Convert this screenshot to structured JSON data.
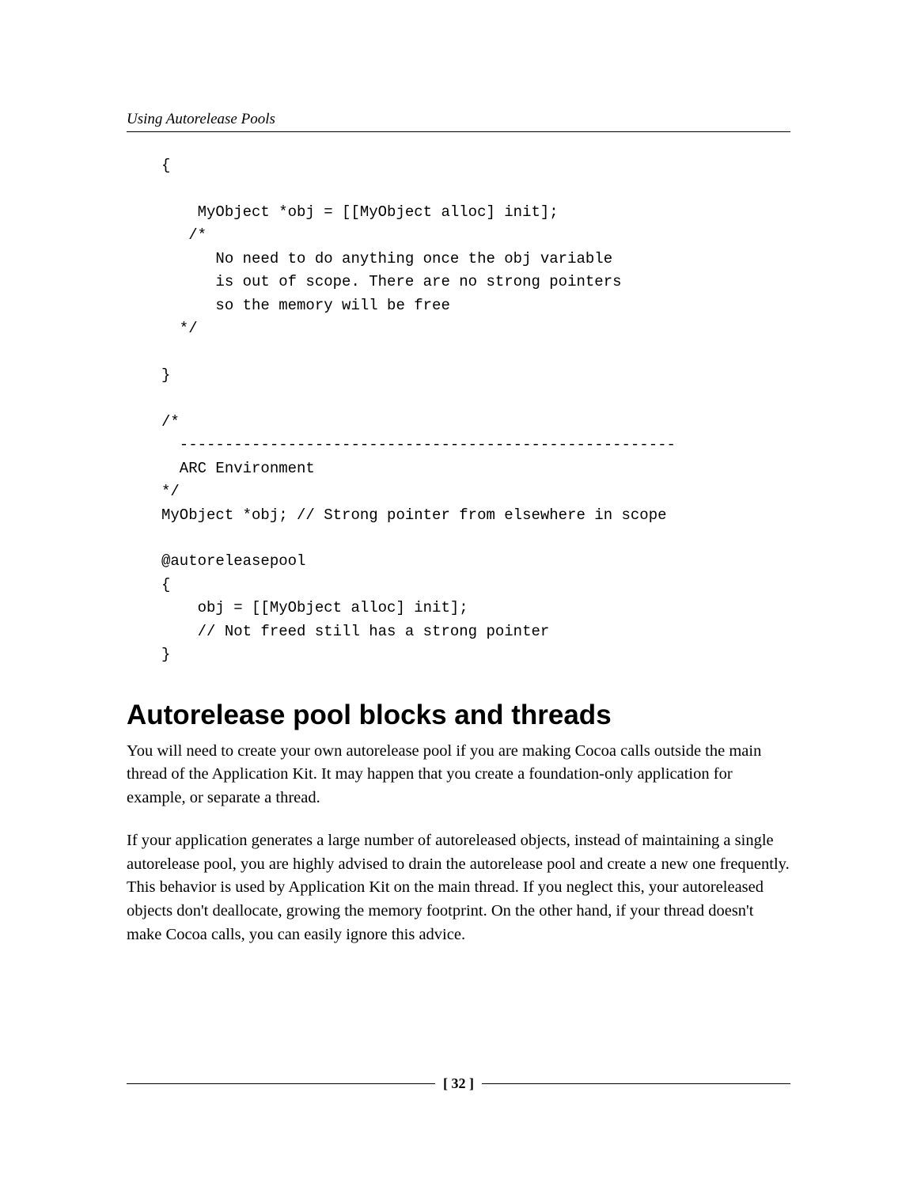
{
  "page": {
    "running_header": "Using Autorelease Pools",
    "page_number": "[ 32 ]"
  },
  "code": {
    "block": "{\n\n    MyObject *obj = [[MyObject alloc] init];\n   /*\n      No need to do anything once the obj variable\n      is out of scope. There are no strong pointers\n      so the memory will be free\n  */\n\n}\n\n/*\n  -------------------------------------------------------\n  ARC Environment\n*/\nMyObject *obj; // Strong pointer from elsewhere in scope\n\n@autoreleasepool\n{\n    obj = [[MyObject alloc] init];\n    // Not freed still has a strong pointer\n}"
  },
  "section": {
    "heading": "Autorelease pool blocks and threads",
    "para1": "You will need to create your own autorelease pool if you are making Cocoa calls outside the main thread of the Application Kit. It may happen that you create a foundation-only application for example, or separate a thread.",
    "para2": "If your application generates a large number of autoreleased objects, instead of maintaining a single autorelease pool, you are highly advised to drain the autorelease pool and create a new one frequently. This behavior is used by Application Kit on the main thread. If you neglect this, your autoreleased objects don't deallocate, growing the memory footprint. On the other hand, if your thread doesn't make Cocoa calls, you can easily ignore this advice."
  },
  "style": {
    "background_color": "#ffffff",
    "text_color": "#000000",
    "code_font": "Courier New",
    "body_font": "Palatino",
    "heading_font": "Arial",
    "heading_fontsize_pt": 26,
    "body_fontsize_pt": 15,
    "code_fontsize_pt": 14,
    "running_header_fontsize_pt": 14
  }
}
